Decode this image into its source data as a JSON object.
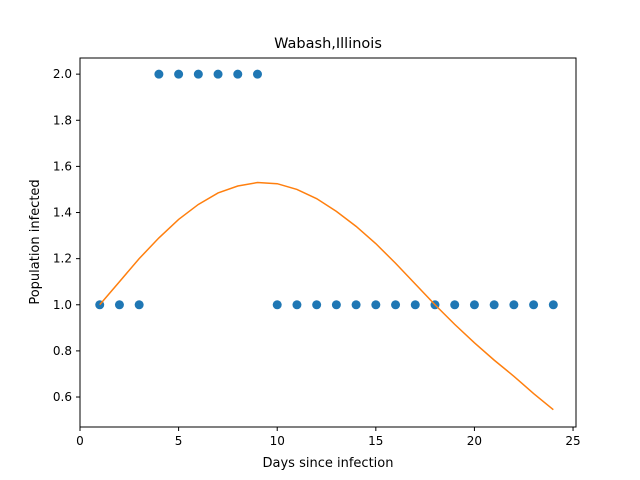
{
  "chart_data": {
    "type": "scatter",
    "title": "Wabash,Illinois",
    "xlabel": "Days since infection",
    "ylabel": "Population infected",
    "xlim": [
      0,
      25.15
    ],
    "ylim": [
      0.47,
      2.07
    ],
    "xticks": [
      0,
      5,
      10,
      15,
      20,
      25
    ],
    "yticks": [
      0.6,
      0.8,
      1.0,
      1.2,
      1.4,
      1.6,
      1.8,
      2.0
    ],
    "xtick_labels": [
      "0",
      "5",
      "10",
      "15",
      "20",
      "25"
    ],
    "ytick_labels": [
      "0.6",
      "0.8",
      "1.0",
      "1.2",
      "1.4",
      "1.6",
      "1.8",
      "2.0"
    ],
    "grid": false,
    "legend": "none",
    "series": [
      {
        "kind": "scatter",
        "color": "#1f77b4",
        "x": [
          1,
          2,
          3,
          4,
          5,
          6,
          7,
          8,
          9,
          10,
          11,
          12,
          13,
          14,
          15,
          16,
          17,
          18,
          19,
          20,
          21,
          22,
          23,
          24
        ],
        "y": [
          1,
          1,
          1,
          2,
          2,
          2,
          2,
          2,
          2,
          1,
          1,
          1,
          1,
          1,
          1,
          1,
          1,
          1,
          1,
          1,
          1,
          1,
          1,
          1
        ]
      },
      {
        "kind": "line",
        "color": "#ff7f0e",
        "x": [
          1,
          2,
          3,
          4,
          5,
          6,
          7,
          8,
          9,
          10,
          11,
          12,
          13,
          14,
          15,
          16,
          17,
          18,
          19,
          20,
          21,
          22,
          23,
          24
        ],
        "y": [
          1.0,
          1.1,
          1.2,
          1.29,
          1.37,
          1.435,
          1.485,
          1.515,
          1.53,
          1.525,
          1.5,
          1.46,
          1.405,
          1.34,
          1.265,
          1.18,
          1.09,
          1.0,
          0.915,
          0.835,
          0.76,
          0.69,
          0.615,
          0.545
        ]
      }
    ]
  }
}
